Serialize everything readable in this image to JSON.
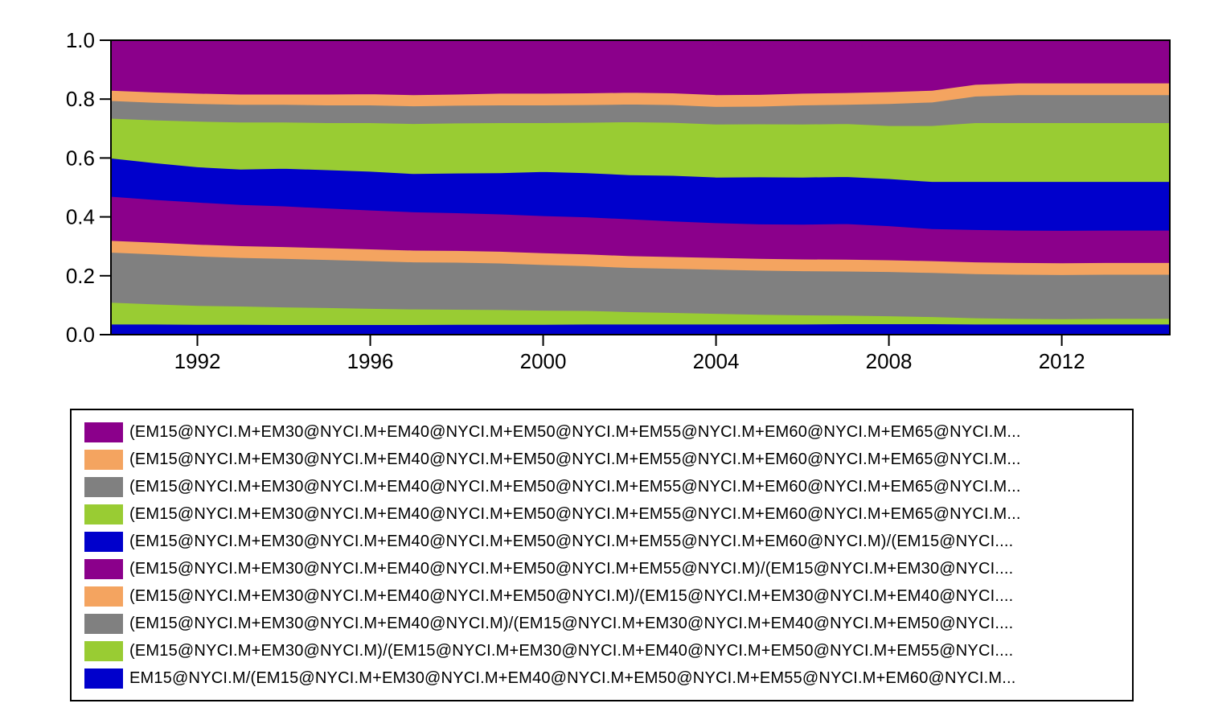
{
  "chart_data": {
    "type": "area",
    "stacked": true,
    "grid": false,
    "ylim": [
      0.0,
      1.0
    ],
    "xlim": [
      1990.0,
      2014.5
    ],
    "yticks": [
      "0.0",
      "0.2",
      "0.4",
      "0.6",
      "0.8",
      "1.0"
    ],
    "xticks": [
      {
        "value": 1992,
        "label": "1992"
      },
      {
        "value": 1996,
        "label": "1996"
      },
      {
        "value": 2000,
        "label": "2000"
      },
      {
        "value": 2004,
        "label": "2004"
      },
      {
        "value": 2008,
        "label": "2008"
      },
      {
        "value": 2012,
        "label": "2012"
      }
    ],
    "legend_position": "below",
    "x": [
      1990.0,
      1991.0,
      1992.0,
      1993.0,
      1994.0,
      1995.0,
      1996.0,
      1997.0,
      1998.0,
      1999.0,
      2000.0,
      2001.0,
      2002.0,
      2003.0,
      2004.0,
      2005.0,
      2006.0,
      2007.0,
      2008.0,
      2009.0,
      2010.0,
      2011.0,
      2012.0,
      2013.0,
      2014.5
    ],
    "series": [
      {
        "name": "EM15@NYCI.M/(EM15@NYCI.M+EM30@NYCI.M+EM40@NYCI.M+EM50@NYCI.M+EM55@NYCI.M+EM60@NYCI.M...",
        "color": "#0000CC",
        "values": [
          0.036,
          0.036,
          0.035,
          0.035,
          0.034,
          0.034,
          0.034,
          0.034,
          0.035,
          0.035,
          0.035,
          0.036,
          0.036,
          0.036,
          0.036,
          0.036,
          0.036,
          0.037,
          0.037,
          0.037,
          0.036,
          0.036,
          0.036,
          0.036,
          0.036
        ]
      },
      {
        "name": "(EM15@NYCI.M+EM30@NYCI.M)/(EM15@NYCI.M+EM30@NYCI.M+EM40@NYCI.M+EM50@NYCI.M+EM55@NYCI....",
        "color": "#99CC33",
        "values": [
          0.074,
          0.068,
          0.064,
          0.062,
          0.06,
          0.058,
          0.055,
          0.053,
          0.051,
          0.05,
          0.048,
          0.046,
          0.042,
          0.039,
          0.036,
          0.033,
          0.031,
          0.029,
          0.027,
          0.024,
          0.021,
          0.019,
          0.018,
          0.019,
          0.019
        ]
      },
      {
        "name": "(EM15@NYCI.M+EM30@NYCI.M+EM40@NYCI.M)/(EM15@NYCI.M+EM30@NYCI.M+EM40@NYCI.M+EM50@NYCI....",
        "color": "#808080",
        "values": [
          0.17,
          0.17,
          0.168,
          0.165,
          0.165,
          0.163,
          0.162,
          0.16,
          0.16,
          0.158,
          0.155,
          0.152,
          0.15,
          0.15,
          0.15,
          0.15,
          0.15,
          0.15,
          0.15,
          0.15,
          0.15,
          0.15,
          0.15,
          0.15,
          0.15
        ]
      },
      {
        "name": "(EM15@NYCI.M+EM30@NYCI.M+EM40@NYCI.M+EM50@NYCI.M)/(EM15@NYCI.M+EM30@NYCI.M+EM40@NYCI....",
        "color": "#F4A460",
        "values": [
          0.04,
          0.04,
          0.04,
          0.04,
          0.04,
          0.04,
          0.04,
          0.04,
          0.04,
          0.04,
          0.04,
          0.04,
          0.04,
          0.04,
          0.04,
          0.04,
          0.04,
          0.04,
          0.04,
          0.04,
          0.04,
          0.04,
          0.04,
          0.04,
          0.04
        ]
      },
      {
        "name": "(EM15@NYCI.M+EM30@NYCI.M+EM40@NYCI.M+EM50@NYCI.M+EM55@NYCI.M)/(EM15@NYCI.M+EM30@NYCI....",
        "color": "#8B008B",
        "values": [
          0.15,
          0.145,
          0.143,
          0.14,
          0.138,
          0.135,
          0.132,
          0.13,
          0.128,
          0.127,
          0.126,
          0.126,
          0.125,
          0.121,
          0.118,
          0.117,
          0.118,
          0.121,
          0.116,
          0.109,
          0.11,
          0.11,
          0.11,
          0.11,
          0.11
        ]
      },
      {
        "name": "(EM15@NYCI.M+EM30@NYCI.M+EM40@NYCI.M+EM50@NYCI.M+EM55@NYCI.M+EM60@NYCI.M)/(EM15@NYCI....",
        "color": "#0000CC",
        "values": [
          0.13,
          0.125,
          0.12,
          0.12,
          0.128,
          0.13,
          0.132,
          0.13,
          0.135,
          0.14,
          0.15,
          0.15,
          0.15,
          0.155,
          0.155,
          0.16,
          0.16,
          0.16,
          0.16,
          0.16,
          0.163,
          0.165,
          0.166,
          0.165,
          0.165
        ]
      },
      {
        "name": "(EM15@NYCI.M+EM30@NYCI.M+EM40@NYCI.M+EM50@NYCI.M+EM55@NYCI.M+EM60@NYCI.M+EM65@NYCI.M...",
        "color": "#99CC33",
        "values": [
          0.135,
          0.145,
          0.155,
          0.16,
          0.157,
          0.16,
          0.165,
          0.17,
          0.17,
          0.17,
          0.166,
          0.171,
          0.18,
          0.18,
          0.18,
          0.18,
          0.18,
          0.18,
          0.18,
          0.19,
          0.2,
          0.2,
          0.2,
          0.2,
          0.2
        ]
      },
      {
        "name": "(EM15@NYCI.M+EM30@NYCI.M+EM40@NYCI.M+EM50@NYCI.M+EM55@NYCI.M+EM60@NYCI.M+EM65@NYCI.M...",
        "color": "#808080",
        "values": [
          0.06,
          0.06,
          0.06,
          0.06,
          0.06,
          0.06,
          0.06,
          0.06,
          0.06,
          0.06,
          0.06,
          0.06,
          0.06,
          0.06,
          0.06,
          0.06,
          0.065,
          0.065,
          0.075,
          0.08,
          0.09,
          0.095,
          0.095,
          0.095,
          0.095
        ]
      },
      {
        "name": "(EM15@NYCI.M+EM30@NYCI.M+EM40@NYCI.M+EM50@NYCI.M+EM55@NYCI.M+EM60@NYCI.M+EM65@NYCI.M...",
        "color": "#F4A460",
        "values": [
          0.035,
          0.035,
          0.035,
          0.035,
          0.035,
          0.037,
          0.038,
          0.038,
          0.038,
          0.04,
          0.04,
          0.04,
          0.04,
          0.04,
          0.04,
          0.04,
          0.04,
          0.04,
          0.04,
          0.04,
          0.04,
          0.04,
          0.04,
          0.04,
          0.04
        ]
      },
      {
        "name": "(EM15@NYCI.M+EM30@NYCI.M+EM40@NYCI.M+EM50@NYCI.M+EM55@NYCI.M+EM60@NYCI.M+EM65@NYCI.M...",
        "color": "#8B008B",
        "values": [
          0.17,
          0.176,
          0.18,
          0.183,
          0.183,
          0.18,
          0.177,
          0.175,
          0.173,
          0.17,
          0.17,
          0.169,
          0.167,
          0.169,
          0.169,
          0.168,
          0.162,
          0.16,
          0.155,
          0.15,
          0.14,
          0.139,
          0.139,
          0.135,
          0.135
        ]
      }
    ]
  },
  "legend": {
    "items": [
      {
        "label": "(EM15@NYCI.M+EM30@NYCI.M+EM40@NYCI.M+EM50@NYCI.M+EM55@NYCI.M+EM60@NYCI.M+EM65@NYCI.M...",
        "color": "#8B008B"
      },
      {
        "label": "(EM15@NYCI.M+EM30@NYCI.M+EM40@NYCI.M+EM50@NYCI.M+EM55@NYCI.M+EM60@NYCI.M+EM65@NYCI.M...",
        "color": "#F4A460"
      },
      {
        "label": "(EM15@NYCI.M+EM30@NYCI.M+EM40@NYCI.M+EM50@NYCI.M+EM55@NYCI.M+EM60@NYCI.M+EM65@NYCI.M...",
        "color": "#808080"
      },
      {
        "label": "(EM15@NYCI.M+EM30@NYCI.M+EM40@NYCI.M+EM50@NYCI.M+EM55@NYCI.M+EM60@NYCI.M+EM65@NYCI.M...",
        "color": "#99CC33"
      },
      {
        "label": "(EM15@NYCI.M+EM30@NYCI.M+EM40@NYCI.M+EM50@NYCI.M+EM55@NYCI.M+EM60@NYCI.M)/(EM15@NYCI....",
        "color": "#0000CC"
      },
      {
        "label": "(EM15@NYCI.M+EM30@NYCI.M+EM40@NYCI.M+EM50@NYCI.M+EM55@NYCI.M)/(EM15@NYCI.M+EM30@NYCI....",
        "color": "#8B008B"
      },
      {
        "label": "(EM15@NYCI.M+EM30@NYCI.M+EM40@NYCI.M+EM50@NYCI.M)/(EM15@NYCI.M+EM30@NYCI.M+EM40@NYCI....",
        "color": "#F4A460"
      },
      {
        "label": "(EM15@NYCI.M+EM30@NYCI.M+EM40@NYCI.M)/(EM15@NYCI.M+EM30@NYCI.M+EM40@NYCI.M+EM50@NYCI....",
        "color": "#808080"
      },
      {
        "label": "(EM15@NYCI.M+EM30@NYCI.M)/(EM15@NYCI.M+EM30@NYCI.M+EM40@NYCI.M+EM50@NYCI.M+EM55@NYCI....",
        "color": "#99CC33"
      },
      {
        "label": "EM15@NYCI.M/(EM15@NYCI.M+EM30@NYCI.M+EM40@NYCI.M+EM50@NYCI.M+EM55@NYCI.M+EM60@NYCI.M...",
        "color": "#0000CC"
      }
    ]
  }
}
